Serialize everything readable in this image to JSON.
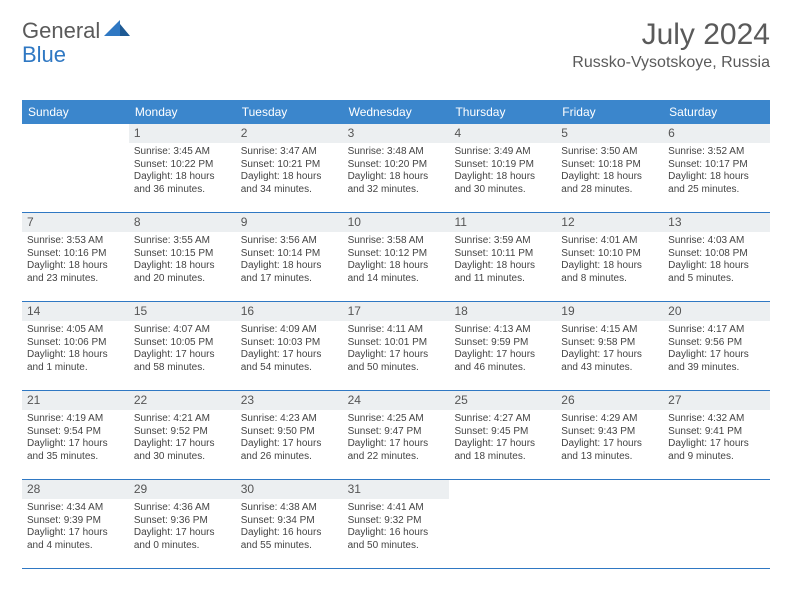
{
  "logo": {
    "part1": "General",
    "part2": "Blue"
  },
  "title": "July 2024",
  "location": "Russko-Vysotskoye, Russia",
  "colors": {
    "header_bg": "#3b86cc",
    "header_text": "#ffffff",
    "daynum_bg": "#eceff1",
    "week_divider": "#2f78c3",
    "text": "#444444",
    "title_text": "#5a5a5a",
    "logo_blue": "#2f78c3"
  },
  "typography": {
    "title_fontsize": 30,
    "location_fontsize": 16,
    "dow_fontsize": 12,
    "daynum_fontsize": 12,
    "body_fontsize": 10
  },
  "days_of_week": [
    "Sunday",
    "Monday",
    "Tuesday",
    "Wednesday",
    "Thursday",
    "Friday",
    "Saturday"
  ],
  "weeks": [
    [
      {
        "num": "",
        "sunrise": "",
        "sunset": "",
        "day1": "",
        "day2": ""
      },
      {
        "num": "1",
        "sunrise": "Sunrise: 3:45 AM",
        "sunset": "Sunset: 10:22 PM",
        "day1": "Daylight: 18 hours",
        "day2": "and 36 minutes."
      },
      {
        "num": "2",
        "sunrise": "Sunrise: 3:47 AM",
        "sunset": "Sunset: 10:21 PM",
        "day1": "Daylight: 18 hours",
        "day2": "and 34 minutes."
      },
      {
        "num": "3",
        "sunrise": "Sunrise: 3:48 AM",
        "sunset": "Sunset: 10:20 PM",
        "day1": "Daylight: 18 hours",
        "day2": "and 32 minutes."
      },
      {
        "num": "4",
        "sunrise": "Sunrise: 3:49 AM",
        "sunset": "Sunset: 10:19 PM",
        "day1": "Daylight: 18 hours",
        "day2": "and 30 minutes."
      },
      {
        "num": "5",
        "sunrise": "Sunrise: 3:50 AM",
        "sunset": "Sunset: 10:18 PM",
        "day1": "Daylight: 18 hours",
        "day2": "and 28 minutes."
      },
      {
        "num": "6",
        "sunrise": "Sunrise: 3:52 AM",
        "sunset": "Sunset: 10:17 PM",
        "day1": "Daylight: 18 hours",
        "day2": "and 25 minutes."
      }
    ],
    [
      {
        "num": "7",
        "sunrise": "Sunrise: 3:53 AM",
        "sunset": "Sunset: 10:16 PM",
        "day1": "Daylight: 18 hours",
        "day2": "and 23 minutes."
      },
      {
        "num": "8",
        "sunrise": "Sunrise: 3:55 AM",
        "sunset": "Sunset: 10:15 PM",
        "day1": "Daylight: 18 hours",
        "day2": "and 20 minutes."
      },
      {
        "num": "9",
        "sunrise": "Sunrise: 3:56 AM",
        "sunset": "Sunset: 10:14 PM",
        "day1": "Daylight: 18 hours",
        "day2": "and 17 minutes."
      },
      {
        "num": "10",
        "sunrise": "Sunrise: 3:58 AM",
        "sunset": "Sunset: 10:12 PM",
        "day1": "Daylight: 18 hours",
        "day2": "and 14 minutes."
      },
      {
        "num": "11",
        "sunrise": "Sunrise: 3:59 AM",
        "sunset": "Sunset: 10:11 PM",
        "day1": "Daylight: 18 hours",
        "day2": "and 11 minutes."
      },
      {
        "num": "12",
        "sunrise": "Sunrise: 4:01 AM",
        "sunset": "Sunset: 10:10 PM",
        "day1": "Daylight: 18 hours",
        "day2": "and 8 minutes."
      },
      {
        "num": "13",
        "sunrise": "Sunrise: 4:03 AM",
        "sunset": "Sunset: 10:08 PM",
        "day1": "Daylight: 18 hours",
        "day2": "and 5 minutes."
      }
    ],
    [
      {
        "num": "14",
        "sunrise": "Sunrise: 4:05 AM",
        "sunset": "Sunset: 10:06 PM",
        "day1": "Daylight: 18 hours",
        "day2": "and 1 minute."
      },
      {
        "num": "15",
        "sunrise": "Sunrise: 4:07 AM",
        "sunset": "Sunset: 10:05 PM",
        "day1": "Daylight: 17 hours",
        "day2": "and 58 minutes."
      },
      {
        "num": "16",
        "sunrise": "Sunrise: 4:09 AM",
        "sunset": "Sunset: 10:03 PM",
        "day1": "Daylight: 17 hours",
        "day2": "and 54 minutes."
      },
      {
        "num": "17",
        "sunrise": "Sunrise: 4:11 AM",
        "sunset": "Sunset: 10:01 PM",
        "day1": "Daylight: 17 hours",
        "day2": "and 50 minutes."
      },
      {
        "num": "18",
        "sunrise": "Sunrise: 4:13 AM",
        "sunset": "Sunset: 9:59 PM",
        "day1": "Daylight: 17 hours",
        "day2": "and 46 minutes."
      },
      {
        "num": "19",
        "sunrise": "Sunrise: 4:15 AM",
        "sunset": "Sunset: 9:58 PM",
        "day1": "Daylight: 17 hours",
        "day2": "and 43 minutes."
      },
      {
        "num": "20",
        "sunrise": "Sunrise: 4:17 AM",
        "sunset": "Sunset: 9:56 PM",
        "day1": "Daylight: 17 hours",
        "day2": "and 39 minutes."
      }
    ],
    [
      {
        "num": "21",
        "sunrise": "Sunrise: 4:19 AM",
        "sunset": "Sunset: 9:54 PM",
        "day1": "Daylight: 17 hours",
        "day2": "and 35 minutes."
      },
      {
        "num": "22",
        "sunrise": "Sunrise: 4:21 AM",
        "sunset": "Sunset: 9:52 PM",
        "day1": "Daylight: 17 hours",
        "day2": "and 30 minutes."
      },
      {
        "num": "23",
        "sunrise": "Sunrise: 4:23 AM",
        "sunset": "Sunset: 9:50 PM",
        "day1": "Daylight: 17 hours",
        "day2": "and 26 minutes."
      },
      {
        "num": "24",
        "sunrise": "Sunrise: 4:25 AM",
        "sunset": "Sunset: 9:47 PM",
        "day1": "Daylight: 17 hours",
        "day2": "and 22 minutes."
      },
      {
        "num": "25",
        "sunrise": "Sunrise: 4:27 AM",
        "sunset": "Sunset: 9:45 PM",
        "day1": "Daylight: 17 hours",
        "day2": "and 18 minutes."
      },
      {
        "num": "26",
        "sunrise": "Sunrise: 4:29 AM",
        "sunset": "Sunset: 9:43 PM",
        "day1": "Daylight: 17 hours",
        "day2": "and 13 minutes."
      },
      {
        "num": "27",
        "sunrise": "Sunrise: 4:32 AM",
        "sunset": "Sunset: 9:41 PM",
        "day1": "Daylight: 17 hours",
        "day2": "and 9 minutes."
      }
    ],
    [
      {
        "num": "28",
        "sunrise": "Sunrise: 4:34 AM",
        "sunset": "Sunset: 9:39 PM",
        "day1": "Daylight: 17 hours",
        "day2": "and 4 minutes."
      },
      {
        "num": "29",
        "sunrise": "Sunrise: 4:36 AM",
        "sunset": "Sunset: 9:36 PM",
        "day1": "Daylight: 17 hours",
        "day2": "and 0 minutes."
      },
      {
        "num": "30",
        "sunrise": "Sunrise: 4:38 AM",
        "sunset": "Sunset: 9:34 PM",
        "day1": "Daylight: 16 hours",
        "day2": "and 55 minutes."
      },
      {
        "num": "31",
        "sunrise": "Sunrise: 4:41 AM",
        "sunset": "Sunset: 9:32 PM",
        "day1": "Daylight: 16 hours",
        "day2": "and 50 minutes."
      },
      {
        "num": "",
        "sunrise": "",
        "sunset": "",
        "day1": "",
        "day2": ""
      },
      {
        "num": "",
        "sunrise": "",
        "sunset": "",
        "day1": "",
        "day2": ""
      },
      {
        "num": "",
        "sunrise": "",
        "sunset": "",
        "day1": "",
        "day2": ""
      }
    ]
  ]
}
